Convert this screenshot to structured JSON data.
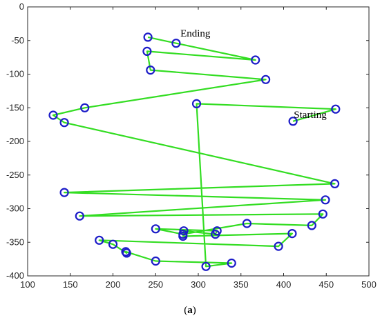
{
  "caption": {
    "open": "(",
    "letter": "a",
    "close": ")"
  },
  "colors": {
    "marker": "#1c1cc8",
    "path": "#33dd22",
    "axis": "#262626"
  },
  "chart_data": {
    "type": "scatter",
    "title": "",
    "xlabel": "",
    "ylabel": "",
    "xlim": [
      100,
      500
    ],
    "ylim": [
      -400,
      0
    ],
    "xticks": [
      100,
      150,
      200,
      250,
      300,
      350,
      400,
      450,
      500
    ],
    "yticks": [
      0,
      -50,
      -100,
      -150,
      -200,
      -250,
      -300,
      -350,
      -400
    ],
    "grid": false,
    "legend": "none",
    "marker": "open-circle",
    "connected": true,
    "annotations": [
      {
        "text": "Starting",
        "x": 412,
        "y": -165
      },
      {
        "text": "Ending",
        "x": 279,
        "y": -44
      }
    ],
    "series": [
      {
        "points": [
          [
            411,
            -170
          ],
          [
            461,
            -152
          ],
          [
            298,
            -144
          ],
          [
            309,
            -386
          ],
          [
            339,
            -381
          ],
          [
            250,
            -378
          ],
          [
            215,
            -364
          ],
          [
            216,
            -366
          ],
          [
            200,
            -353
          ],
          [
            184,
            -347
          ],
          [
            394,
            -356
          ],
          [
            410,
            -337
          ],
          [
            282,
            -341
          ],
          [
            283,
            -333
          ],
          [
            320,
            -338
          ],
          [
            322,
            -333
          ],
          [
            250,
            -330
          ],
          [
            282,
            -338
          ],
          [
            357,
            -322
          ],
          [
            433,
            -325
          ],
          [
            446,
            -308
          ],
          [
            161,
            -311
          ],
          [
            449,
            -287
          ],
          [
            143,
            -276
          ],
          [
            460,
            -263
          ],
          [
            143,
            -172
          ],
          [
            130,
            -161
          ],
          [
            167,
            -150
          ],
          [
            379,
            -108
          ],
          [
            244,
            -94
          ],
          [
            240,
            -66
          ],
          [
            367,
            -79
          ],
          [
            274,
            -54
          ],
          [
            241,
            -45
          ]
        ]
      }
    ]
  }
}
